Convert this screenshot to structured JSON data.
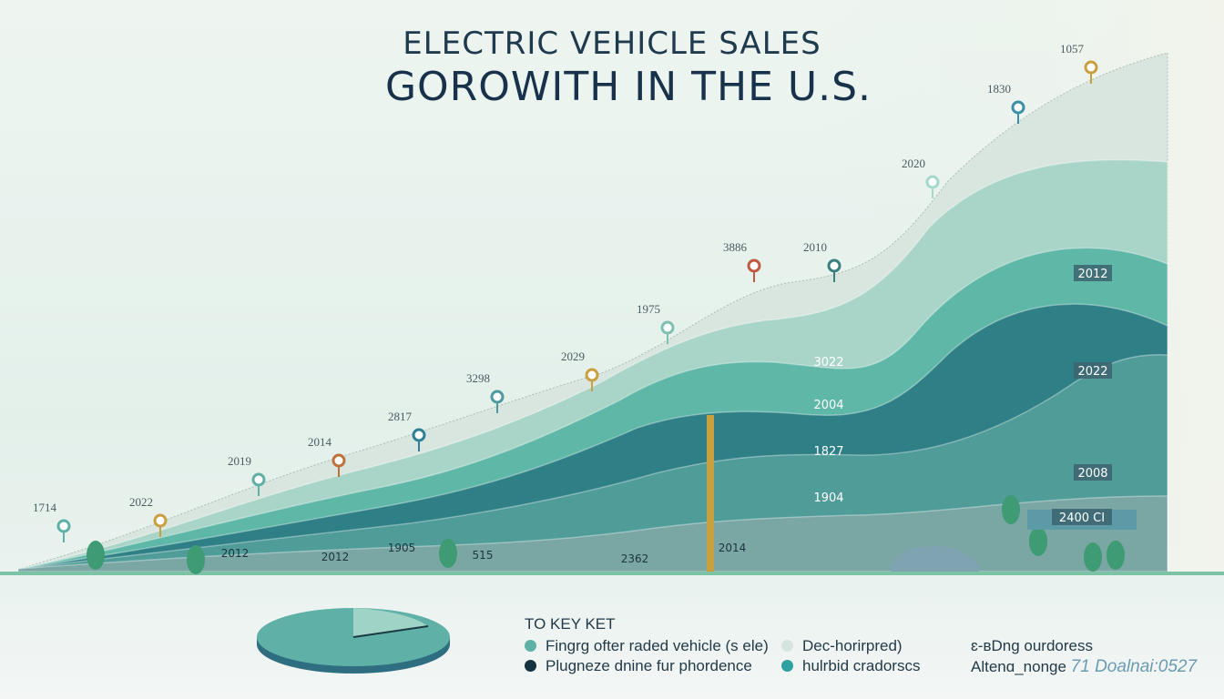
{
  "title": {
    "line1": "ELECTRIC VEHICLE SALES",
    "line2": "GOROWITH IN THE U.S."
  },
  "chart_data": {
    "type": "area",
    "series": [
      {
        "color": "#d9e6e0"
      },
      {
        "color": "#a9d4c8"
      },
      {
        "color": "#5fb7a8"
      },
      {
        "color": "#2f7f86"
      },
      {
        "color": "#4f9c98"
      },
      {
        "color": "#7aa6a4"
      }
    ],
    "markers": [
      {
        "label": "1714",
        "color": "#5fb0a6"
      },
      {
        "label": "2022",
        "color": "#c9a040"
      },
      {
        "label": "2019",
        "color": "#5fb0a6"
      },
      {
        "label": "2014",
        "color": "#c0703a"
      },
      {
        "label": "2817",
        "color": "#2f7f96"
      },
      {
        "label": "3298",
        "color": "#4f9aa0"
      },
      {
        "label": "2029",
        "color": "#c9a040"
      },
      {
        "label": "1975",
        "color": "#7fc0b0"
      },
      {
        "label": "3886",
        "color": "#c05a40"
      },
      {
        "label": "2010",
        "color": "#3b7f7f"
      },
      {
        "label": "2020",
        "color": "#a8d8cc"
      },
      {
        "label": "1830",
        "color": "#3b90a6"
      },
      {
        "label": "1057",
        "color": "#c9a040"
      }
    ],
    "area_labels": [
      {
        "label": "2012",
        "boxed": true
      },
      {
        "label": "3022",
        "boxed": false
      },
      {
        "label": "2022",
        "boxed": true
      },
      {
        "label": "2004",
        "boxed": false
      },
      {
        "label": "1827",
        "boxed": false
      },
      {
        "label": "2008",
        "boxed": true
      },
      {
        "label": "1904",
        "boxed": false
      },
      {
        "label": "2400 CI",
        "boxed": true
      }
    ],
    "ground_labels": [
      "2012",
      "2012",
      "1905",
      "515",
      "2362",
      "2014"
    ]
  },
  "legend": {
    "title": "TO KEY KET",
    "items": [
      {
        "label": "Fingrg ofter raded vehicle (s ele)",
        "color": "#5fb0a6"
      },
      {
        "label": "Dec-horirpred)",
        "color": "#d6e4e0"
      },
      {
        "label": "Plugneze dnine fur phordence",
        "color": "#14323f"
      },
      {
        "label": "hulrbid cradorscs",
        "color": "#2fa0a0"
      }
    ]
  },
  "notes": {
    "line1": "ɛ-ʙDng ourdoress",
    "line2_prefix": "Altenɑ_nonge",
    "line2_suffix": "71 Doalnai:0527"
  }
}
